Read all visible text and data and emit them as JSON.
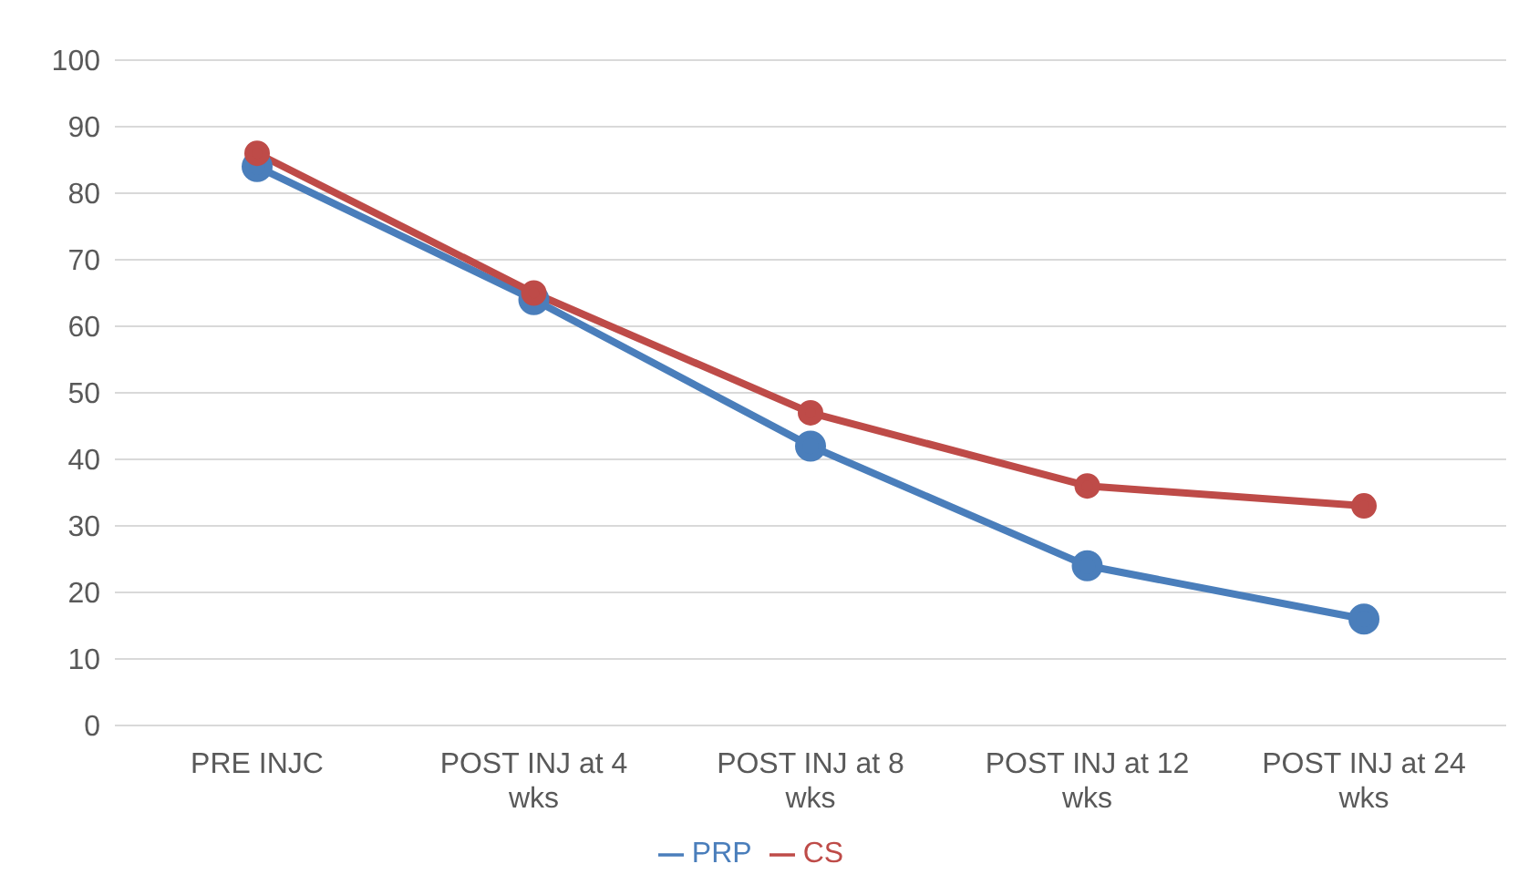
{
  "chart_data": {
    "type": "line",
    "categories": [
      "PRE INJC",
      "POST INJ at 4 wks",
      "POST INJ at 8 wks",
      "POST INJ at 12 wks",
      "POST INJ at 24 wks"
    ],
    "series": [
      {
        "name": "PRP",
        "color": "#4a7ebb",
        "values": [
          84,
          64,
          42,
          24,
          16
        ]
      },
      {
        "name": "CS",
        "color": "#be4b48",
        "values": [
          86,
          65,
          47,
          36,
          33
        ]
      }
    ],
    "ylim": [
      0,
      100
    ],
    "yticks": [
      0,
      10,
      20,
      30,
      40,
      50,
      60,
      70,
      80,
      90,
      100
    ],
    "grid": "y",
    "legend": "bottom",
    "marker": "circle",
    "line_style": "solid"
  }
}
